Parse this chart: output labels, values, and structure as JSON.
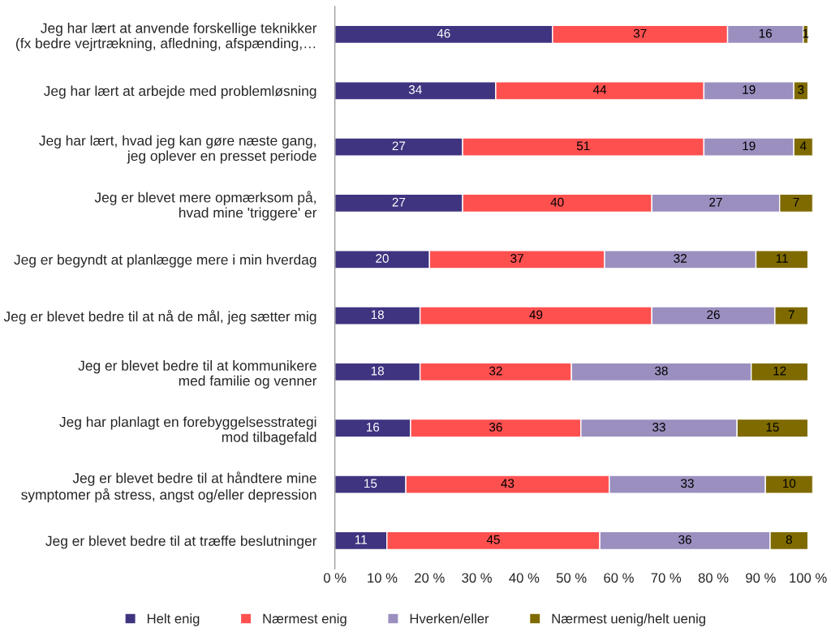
{
  "chart_data": {
    "type": "bar",
    "orientation": "horizontal",
    "stacked": true,
    "data_labels": true,
    "grid": false,
    "legend": "bottom",
    "categories": [
      "Jeg har lært at anvende forskellige teknikker\n(fx bedre vejrtrækning, afledning, afspænding,…",
      "Jeg har lært at arbejde med problemløsning",
      "Jeg har lært, hvad jeg kan gøre næste gang,\njeg oplever en presset periode",
      "Jeg er blevet mere opmærksom på,\nhvad mine 'triggere' er",
      "Jeg er begyndt at planlægge mere i min hverdag",
      "Jeg er blevet bedre til at nå de mål, jeg sætter mig",
      "Jeg er blevet bedre til at kommunikere\nmed familie og venner",
      "Jeg har planlagt en forebyggelsesstrategi\nmod tilbagefald",
      "Jeg er blevet bedre til at håndtere mine\nsymptomer på stress, angst og/eller depression",
      "Jeg er blevet bedre til at træffe beslutninger"
    ],
    "series": [
      {
        "name": "Helt enig",
        "color": "#3f3480",
        "values": [
          46,
          34,
          27,
          27,
          20,
          18,
          18,
          16,
          15,
          11
        ]
      },
      {
        "name": "Nærmest enig",
        "color": "#ff5050",
        "values": [
          37,
          44,
          51,
          40,
          37,
          49,
          32,
          36,
          43,
          45
        ]
      },
      {
        "name": "Hverken/eller",
        "color": "#9b8fbf",
        "values": [
          16,
          19,
          19,
          27,
          32,
          26,
          38,
          33,
          33,
          36
        ]
      },
      {
        "name": "Nærmest uenig/helt uenig",
        "color": "#7f6a00",
        "values": [
          1,
          3,
          4,
          7,
          11,
          7,
          12,
          15,
          10,
          8
        ]
      }
    ],
    "xlim": [
      0,
      101
    ],
    "xticks": [
      {
        "value": 0,
        "label": "0 %"
      },
      {
        "value": 10,
        "label": "10 %"
      },
      {
        "value": 20,
        "label": "20 %"
      },
      {
        "value": 30,
        "label": "30 %"
      },
      {
        "value": 40,
        "label": "40 %"
      },
      {
        "value": 50,
        "label": "50 %"
      },
      {
        "value": 60,
        "label": "60 %"
      },
      {
        "value": 70,
        "label": "70 %"
      },
      {
        "value": 80,
        "label": "80 %"
      },
      {
        "value": 90,
        "label": "90 %"
      },
      {
        "value": 100,
        "label": "100 %"
      }
    ]
  }
}
